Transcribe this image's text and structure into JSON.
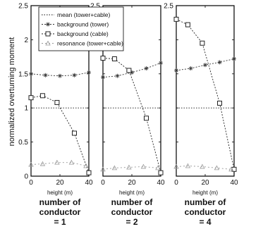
{
  "chart_data": {
    "type": "line",
    "ylabel": "normalized overturning moment",
    "legend": {
      "placement": "top-left",
      "entries": [
        "mean (tower+cable)",
        "background (tower)",
        "background (cable)",
        "resonance (tower+cable)"
      ]
    },
    "grid": false,
    "series_styles": [
      {
        "entry": 0,
        "color": "#111111",
        "dash": "1.5,2",
        "marker": "none"
      },
      {
        "entry": 1,
        "color": "#333333",
        "dash": "2,2",
        "marker": "asterisk"
      },
      {
        "entry": 2,
        "color": "#222222",
        "dash": "2,2",
        "marker": "square"
      },
      {
        "entry": 3,
        "color": "#999999",
        "dash": "2,3",
        "marker": "triangle"
      }
    ],
    "panels": [
      {
        "caption": [
          "number of",
          "conductor",
          "= 1"
        ],
        "xlabel": "height (m)",
        "xlim": [
          0,
          40
        ],
        "ylim": [
          0,
          2.5
        ],
        "xticks": [
          "0",
          "20",
          "40"
        ],
        "yticks": [
          "0",
          "0.5",
          "1",
          "1.5",
          "2",
          "2.5"
        ],
        "series": [
          {
            "x": [
              0,
              40
            ],
            "y": [
              1.0,
              1.0
            ]
          },
          {
            "x": [
              0,
              10,
              20,
              30,
              40
            ],
            "y": [
              1.5,
              1.48,
              1.47,
              1.48,
              1.52
            ]
          },
          {
            "x": [
              0,
              8,
              18,
              30,
              40
            ],
            "y": [
              1.15,
              1.18,
              1.08,
              0.63,
              0.05
            ]
          },
          {
            "x": [
              0,
              8,
              18,
              28,
              38
            ],
            "y": [
              0.17,
              0.18,
              0.2,
              0.2,
              0.15
            ]
          }
        ]
      },
      {
        "caption": [
          "number of",
          "conductor",
          "= 2"
        ],
        "xlabel": "height (m)",
        "xlim": [
          0,
          40
        ],
        "ylim": [
          0,
          2.5
        ],
        "xticks": [
          "0",
          "20",
          "40"
        ],
        "yticks": [
          "",
          "",
          "",
          "",
          "",
          "2.5"
        ],
        "series": [
          {
            "x": [
              0,
              40
            ],
            "y": [
              1.0,
              1.0
            ]
          },
          {
            "x": [
              0,
              10,
              20,
              30,
              40
            ],
            "y": [
              1.45,
              1.47,
              1.52,
              1.58,
              1.66
            ]
          },
          {
            "x": [
              0,
              8,
              18,
              30,
              40
            ],
            "y": [
              1.73,
              1.72,
              1.55,
              0.85,
              0.05
            ]
          },
          {
            "x": [
              0,
              8,
              18,
              28,
              38
            ],
            "y": [
              0.1,
              0.12,
              0.13,
              0.14,
              0.12
            ]
          }
        ]
      },
      {
        "caption": [
          "number of",
          "conductor",
          "= 4"
        ],
        "xlabel": "height (m)",
        "xlim": [
          0,
          40
        ],
        "ylim": [
          0,
          2.5
        ],
        "xticks": [
          "0",
          "20",
          "40"
        ],
        "yticks": [
          "",
          "",
          "",
          "",
          "",
          "2.5"
        ],
        "series": [
          {
            "x": [
              0,
              40
            ],
            "y": [
              1.0,
              1.0
            ]
          },
          {
            "x": [
              0,
              10,
              20,
              30,
              40
            ],
            "y": [
              1.55,
              1.58,
              1.63,
              1.67,
              1.72
            ]
          },
          {
            "x": [
              0,
              8,
              18,
              30,
              40
            ],
            "y": [
              2.3,
              2.22,
              1.95,
              1.07,
              0.1
            ]
          },
          {
            "x": [
              0,
              8,
              18,
              28,
              38
            ],
            "y": [
              0.14,
              0.15,
              0.14,
              0.12,
              0.1
            ]
          }
        ]
      }
    ]
  }
}
